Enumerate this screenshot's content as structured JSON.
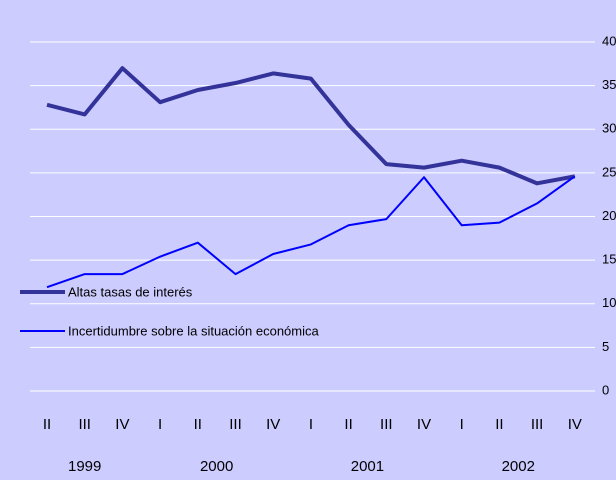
{
  "chart_data": {
    "type": "line",
    "background": "#ccccff",
    "categories": [
      "II",
      "III",
      "IV",
      "I",
      "II",
      "III",
      "IV",
      "I",
      "II",
      "III",
      "IV",
      "I",
      "II",
      "III",
      "IV"
    ],
    "x_groups": [
      {
        "label": "1999",
        "count": 3
      },
      {
        "label": "2000",
        "count": 4
      },
      {
        "label": "2001",
        "count": 4
      },
      {
        "label": "2002",
        "count": 4
      }
    ],
    "series": [
      {
        "name": "Altas tasas de interés",
        "color": "#333399",
        "width": 4,
        "values": [
          32.8,
          31.7,
          37.0,
          33.1,
          34.5,
          35.3,
          36.4,
          35.8,
          30.5,
          26.0,
          25.6,
          26.4,
          25.6,
          23.8,
          24.6
        ]
      },
      {
        "name": "Incertidumbre sobre la situación económica",
        "color": "#0000ff",
        "width": 2,
        "values": [
          11.9,
          13.4,
          13.4,
          15.4,
          17.0,
          13.4,
          15.7,
          16.8,
          19.0,
          19.7,
          24.5,
          19.0,
          19.3,
          21.5,
          24.6
        ]
      }
    ],
    "ylim": [
      0,
      40
    ],
    "yticks": [
      0,
      5,
      10,
      15,
      20,
      25,
      30,
      35,
      40
    ],
    "y_axis_side": "right",
    "grid": true,
    "legend": "left"
  }
}
